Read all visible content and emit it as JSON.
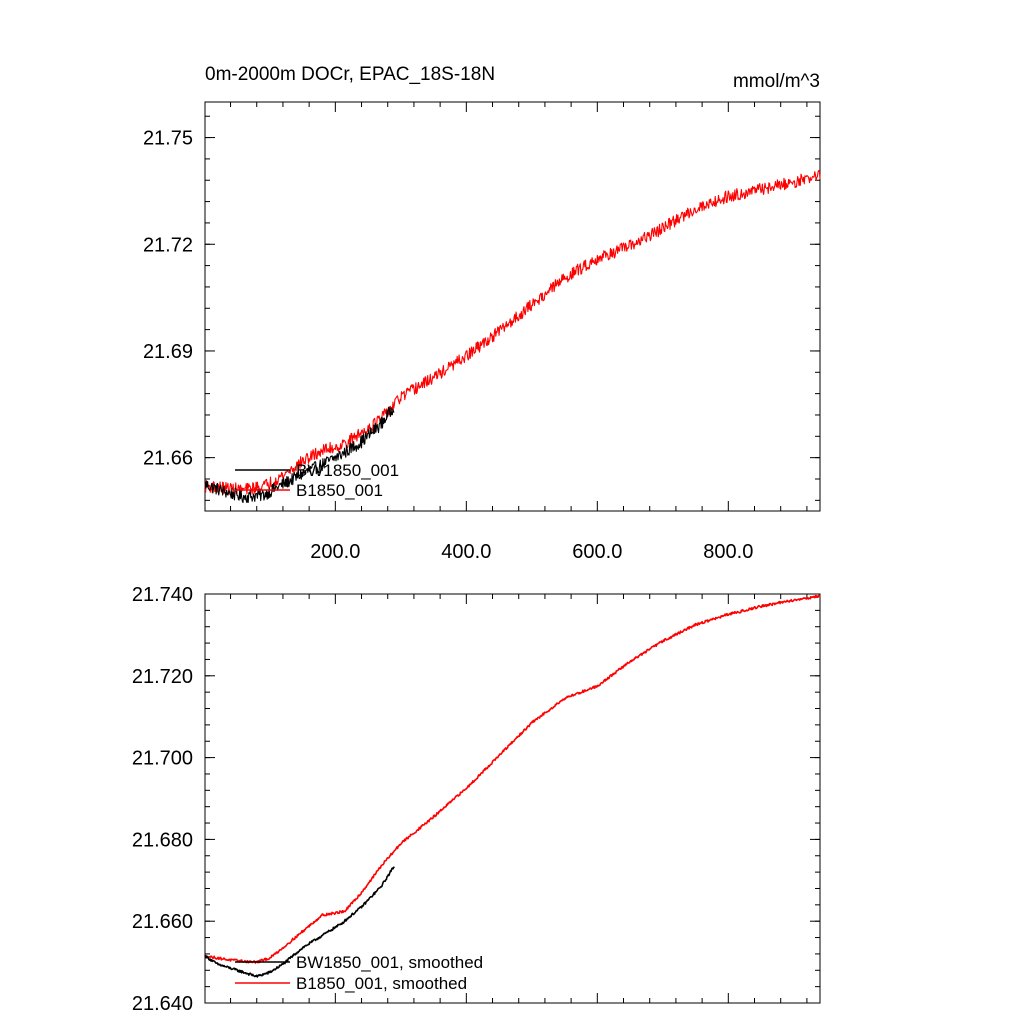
{
  "chart_data": [
    {
      "type": "line",
      "title": "0m-2000m DOCr, EPAC_18S-18N",
      "units": "mmol/m^3",
      "xlim": [
        1,
        940
      ],
      "ylim": [
        21.645,
        21.76
      ],
      "x_ticks": [
        200,
        400,
        600,
        800
      ],
      "x_tick_labels": [
        "200.0",
        "400.0",
        "600.0",
        "800.0"
      ],
      "y_ticks": [
        21.66,
        21.69,
        21.72,
        21.75
      ],
      "y_tick_labels": [
        "21.66",
        "21.69",
        "21.72",
        "21.75"
      ],
      "legend_location": "bottom-left",
      "series": [
        {
          "name": "BW1850_001",
          "color": "#000000",
          "noise": 0.0018,
          "x": [
            1,
            30,
            60,
            90,
            120,
            150,
            180,
            210,
            240,
            270,
            290
          ],
          "values": [
            21.6525,
            21.6505,
            21.649,
            21.6495,
            21.6525,
            21.6555,
            21.658,
            21.661,
            21.6645,
            21.6695,
            21.6745
          ]
        },
        {
          "name": "B1850_001",
          "color": "#ff0000",
          "noise": 0.0017,
          "x": [
            1,
            30,
            60,
            90,
            120,
            150,
            180,
            210,
            240,
            270,
            300,
            350,
            400,
            450,
            500,
            550,
            600,
            650,
            700,
            750,
            800,
            850,
            900,
            940
          ],
          "values": [
            21.652,
            21.6515,
            21.651,
            21.652,
            21.655,
            21.659,
            21.662,
            21.6635,
            21.667,
            21.671,
            21.677,
            21.6825,
            21.6885,
            21.6955,
            21.703,
            21.7105,
            21.716,
            21.7195,
            21.7245,
            21.73,
            21.7335,
            21.7355,
            21.7375,
            21.7395
          ]
        }
      ]
    },
    {
      "type": "line",
      "title": "",
      "xlim": [
        1,
        940
      ],
      "ylim": [
        21.64,
        21.74
      ],
      "x_ticks": [
        200,
        400,
        600,
        800
      ],
      "x_tick_labels": [],
      "y_ticks": [
        21.64,
        21.66,
        21.68,
        21.7,
        21.72,
        21.74
      ],
      "y_tick_labels": [
        "21.640",
        "21.660",
        "21.680",
        "21.700",
        "21.720",
        "21.740"
      ],
      "legend_location": "bottom-left",
      "series": [
        {
          "name": "BW1850_001, smoothed",
          "color": "#000000",
          "noise": 0.0003,
          "x": [
            1,
            20,
            40,
            60,
            80,
            100,
            120,
            150,
            180,
            210,
            240,
            270,
            290
          ],
          "values": [
            21.6515,
            21.6495,
            21.6485,
            21.6475,
            21.6465,
            21.6475,
            21.6495,
            21.6535,
            21.6565,
            21.6595,
            21.6635,
            21.6685,
            21.6735
          ]
        },
        {
          "name": "B1850_001, smoothed",
          "color": "#ff0000",
          "noise": 0.0003,
          "x": [
            1,
            20,
            40,
            60,
            80,
            100,
            120,
            150,
            180,
            200,
            215,
            240,
            270,
            300,
            350,
            400,
            450,
            500,
            550,
            600,
            650,
            700,
            750,
            800,
            850,
            900,
            940
          ],
          "values": [
            21.6515,
            21.651,
            21.6505,
            21.6502,
            21.65,
            21.651,
            21.6535,
            21.6575,
            21.6615,
            21.662,
            21.6625,
            21.667,
            21.6735,
            21.679,
            21.6855,
            21.6925,
            21.7005,
            21.7085,
            21.7145,
            21.7175,
            21.7235,
            21.7285,
            21.7325,
            21.735,
            21.737,
            21.7385,
            21.7395
          ]
        }
      ]
    }
  ]
}
